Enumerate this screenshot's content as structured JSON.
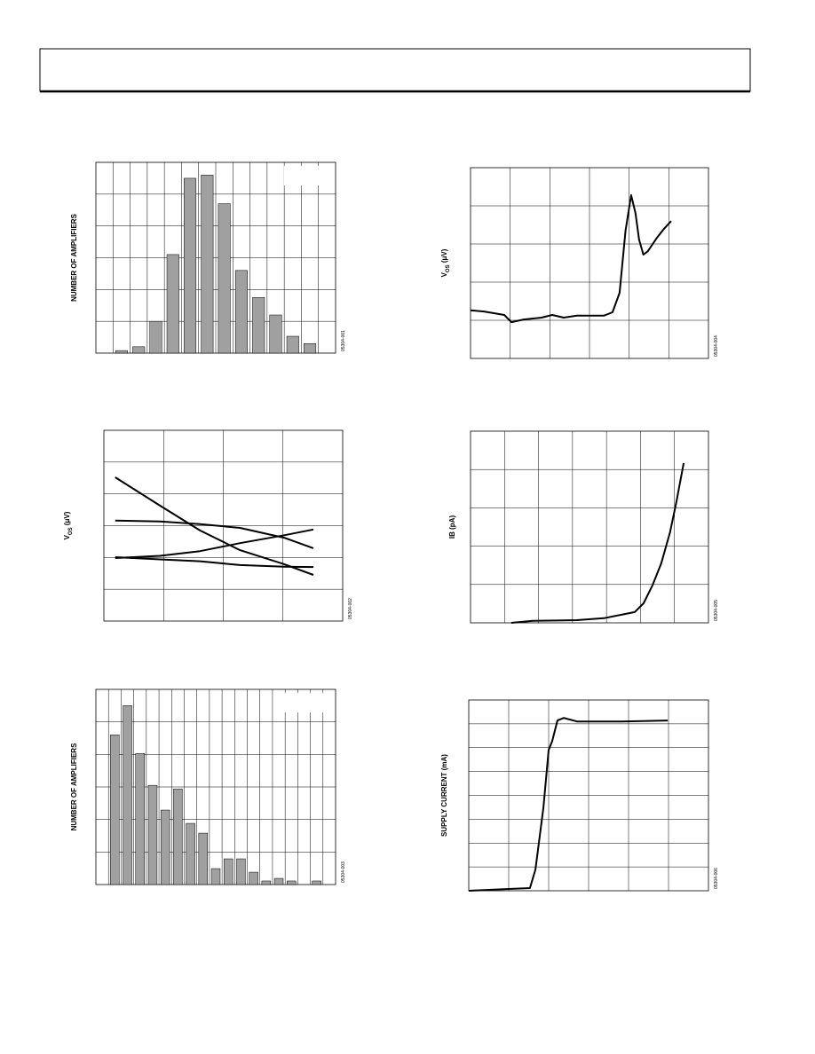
{
  "chart_data": [
    {
      "type": "bar",
      "ylabel": [
        "NUMBER OF AMPLIFIERS"
      ],
      "figure_id": "05304-001",
      "color": "#a0a0a0",
      "x": [
        1.5,
        2.5,
        3.5,
        4.5,
        5.5,
        6.5,
        7.5,
        8.5,
        9.5,
        10.5,
        11.5,
        12.5
      ],
      "values": [
        0.08,
        0.2,
        1.0,
        3.1,
        5.5,
        5.6,
        4.7,
        2.6,
        1.75,
        1.2,
        0.53,
        0.3
      ],
      "xlim": [
        0,
        14
      ],
      "ylim": [
        0,
        6
      ],
      "grid": [
        14,
        6
      ]
    },
    {
      "type": "line",
      "ylabel": [
        "V",
        "OS",
        " (μV)"
      ],
      "figure_id": "05304-004",
      "x": [
        0,
        0.34,
        0.85,
        1.03,
        1.34,
        1.79,
        2.06,
        2.35,
        2.68,
        3.36,
        3.58,
        3.76,
        3.91,
        4.05,
        4.16,
        4.25,
        4.36,
        4.47,
        4.7,
        4.88,
        5.06
      ],
      "series": [
        {
          "color": "#000000",
          "values": [
            1.26,
            1.23,
            1.14,
            0.95,
            1.02,
            1.07,
            1.14,
            1.07,
            1.12,
            1.12,
            1.21,
            1.72,
            3.35,
            4.28,
            3.81,
            3.12,
            2.72,
            2.81,
            3.16,
            3.4,
            3.6
          ]
        }
      ],
      "xlim": [
        0,
        6
      ],
      "ylim": [
        0,
        5
      ],
      "grid": [
        6,
        5
      ]
    },
    {
      "type": "line",
      "ylabel": [
        "V",
        "OS",
        " (μV)"
      ],
      "figure_id": "05304-002",
      "x": [
        0.19,
        0.94,
        1.61,
        2.28,
        3.02,
        3.51
      ],
      "series": [
        {
          "color": "#000000",
          "values": [
            4.52,
            3.63,
            2.85,
            2.23,
            1.79,
            1.45
          ]
        },
        {
          "color": "#000000",
          "values": [
            3.16,
            3.13,
            3.05,
            2.93,
            2.62,
            2.29
          ]
        },
        {
          "color": "#000000",
          "values": [
            1.98,
            2.05,
            2.2,
            2.45,
            2.7,
            2.88
          ]
        },
        {
          "color": "#000000",
          "values": [
            2.01,
            1.94,
            1.88,
            1.76,
            1.71,
            1.7
          ]
        }
      ],
      "xlim": [
        0,
        4
      ],
      "ylim": [
        0,
        6
      ],
      "grid": [
        4,
        6
      ]
    },
    {
      "type": "line",
      "ylabel": [
        "IB (pA)"
      ],
      "figure_id": "05304-005",
      "x": [
        1.2,
        1.83,
        3.13,
        3.92,
        4.44,
        4.83,
        5.09,
        5.35,
        5.61,
        5.87,
        6.06,
        6.27
      ],
      "series": [
        {
          "color": "#000000",
          "values": [
            0,
            0.05,
            0.07,
            0.12,
            0.21,
            0.28,
            0.51,
            0.97,
            1.55,
            2.36,
            3.17,
            4.17
          ]
        }
      ],
      "xlim": [
        0,
        7
      ],
      "ylim": [
        0,
        5
      ],
      "grid": [
        7,
        5
      ]
    },
    {
      "type": "bar",
      "ylabel": [
        "NUMBER OF AMPLIFIERS"
      ],
      "figure_id": "05304-003",
      "color": "#a0a0a0",
      "x": [
        1.5,
        2.5,
        3.5,
        4.5,
        5.5,
        6.5,
        7.5,
        8.5,
        9.5,
        10.5,
        11.5,
        12.5,
        13.5,
        14.5,
        15.5,
        17.5
      ],
      "values": [
        4.6,
        5.5,
        4.03,
        3.05,
        2.29,
        2.94,
        1.88,
        1.58,
        0.49,
        0.79,
        0.79,
        0.38,
        0.11,
        0.19,
        0.11,
        0.11
      ],
      "xlim": [
        0,
        19
      ],
      "ylim": [
        0,
        6
      ],
      "grid": [
        19,
        6
      ]
    },
    {
      "type": "line",
      "ylabel": [
        "SUPPLY CURRENT (mA)"
      ],
      "figure_id": "05304-006",
      "x": [
        0,
        0.93,
        1.53,
        1.67,
        1.87,
        2.0,
        2.09,
        2.22,
        2.38,
        2.71,
        3.82,
        4.98
      ],
      "series": [
        {
          "color": "#000000",
          "values": [
            0,
            0.07,
            0.11,
            0.89,
            3.49,
            5.91,
            6.28,
            7.14,
            7.25,
            7.1,
            7.1,
            7.14
          ]
        }
      ],
      "xlim": [
        0,
        6
      ],
      "ylim": [
        0,
        8
      ],
      "grid": [
        6,
        8
      ]
    }
  ]
}
